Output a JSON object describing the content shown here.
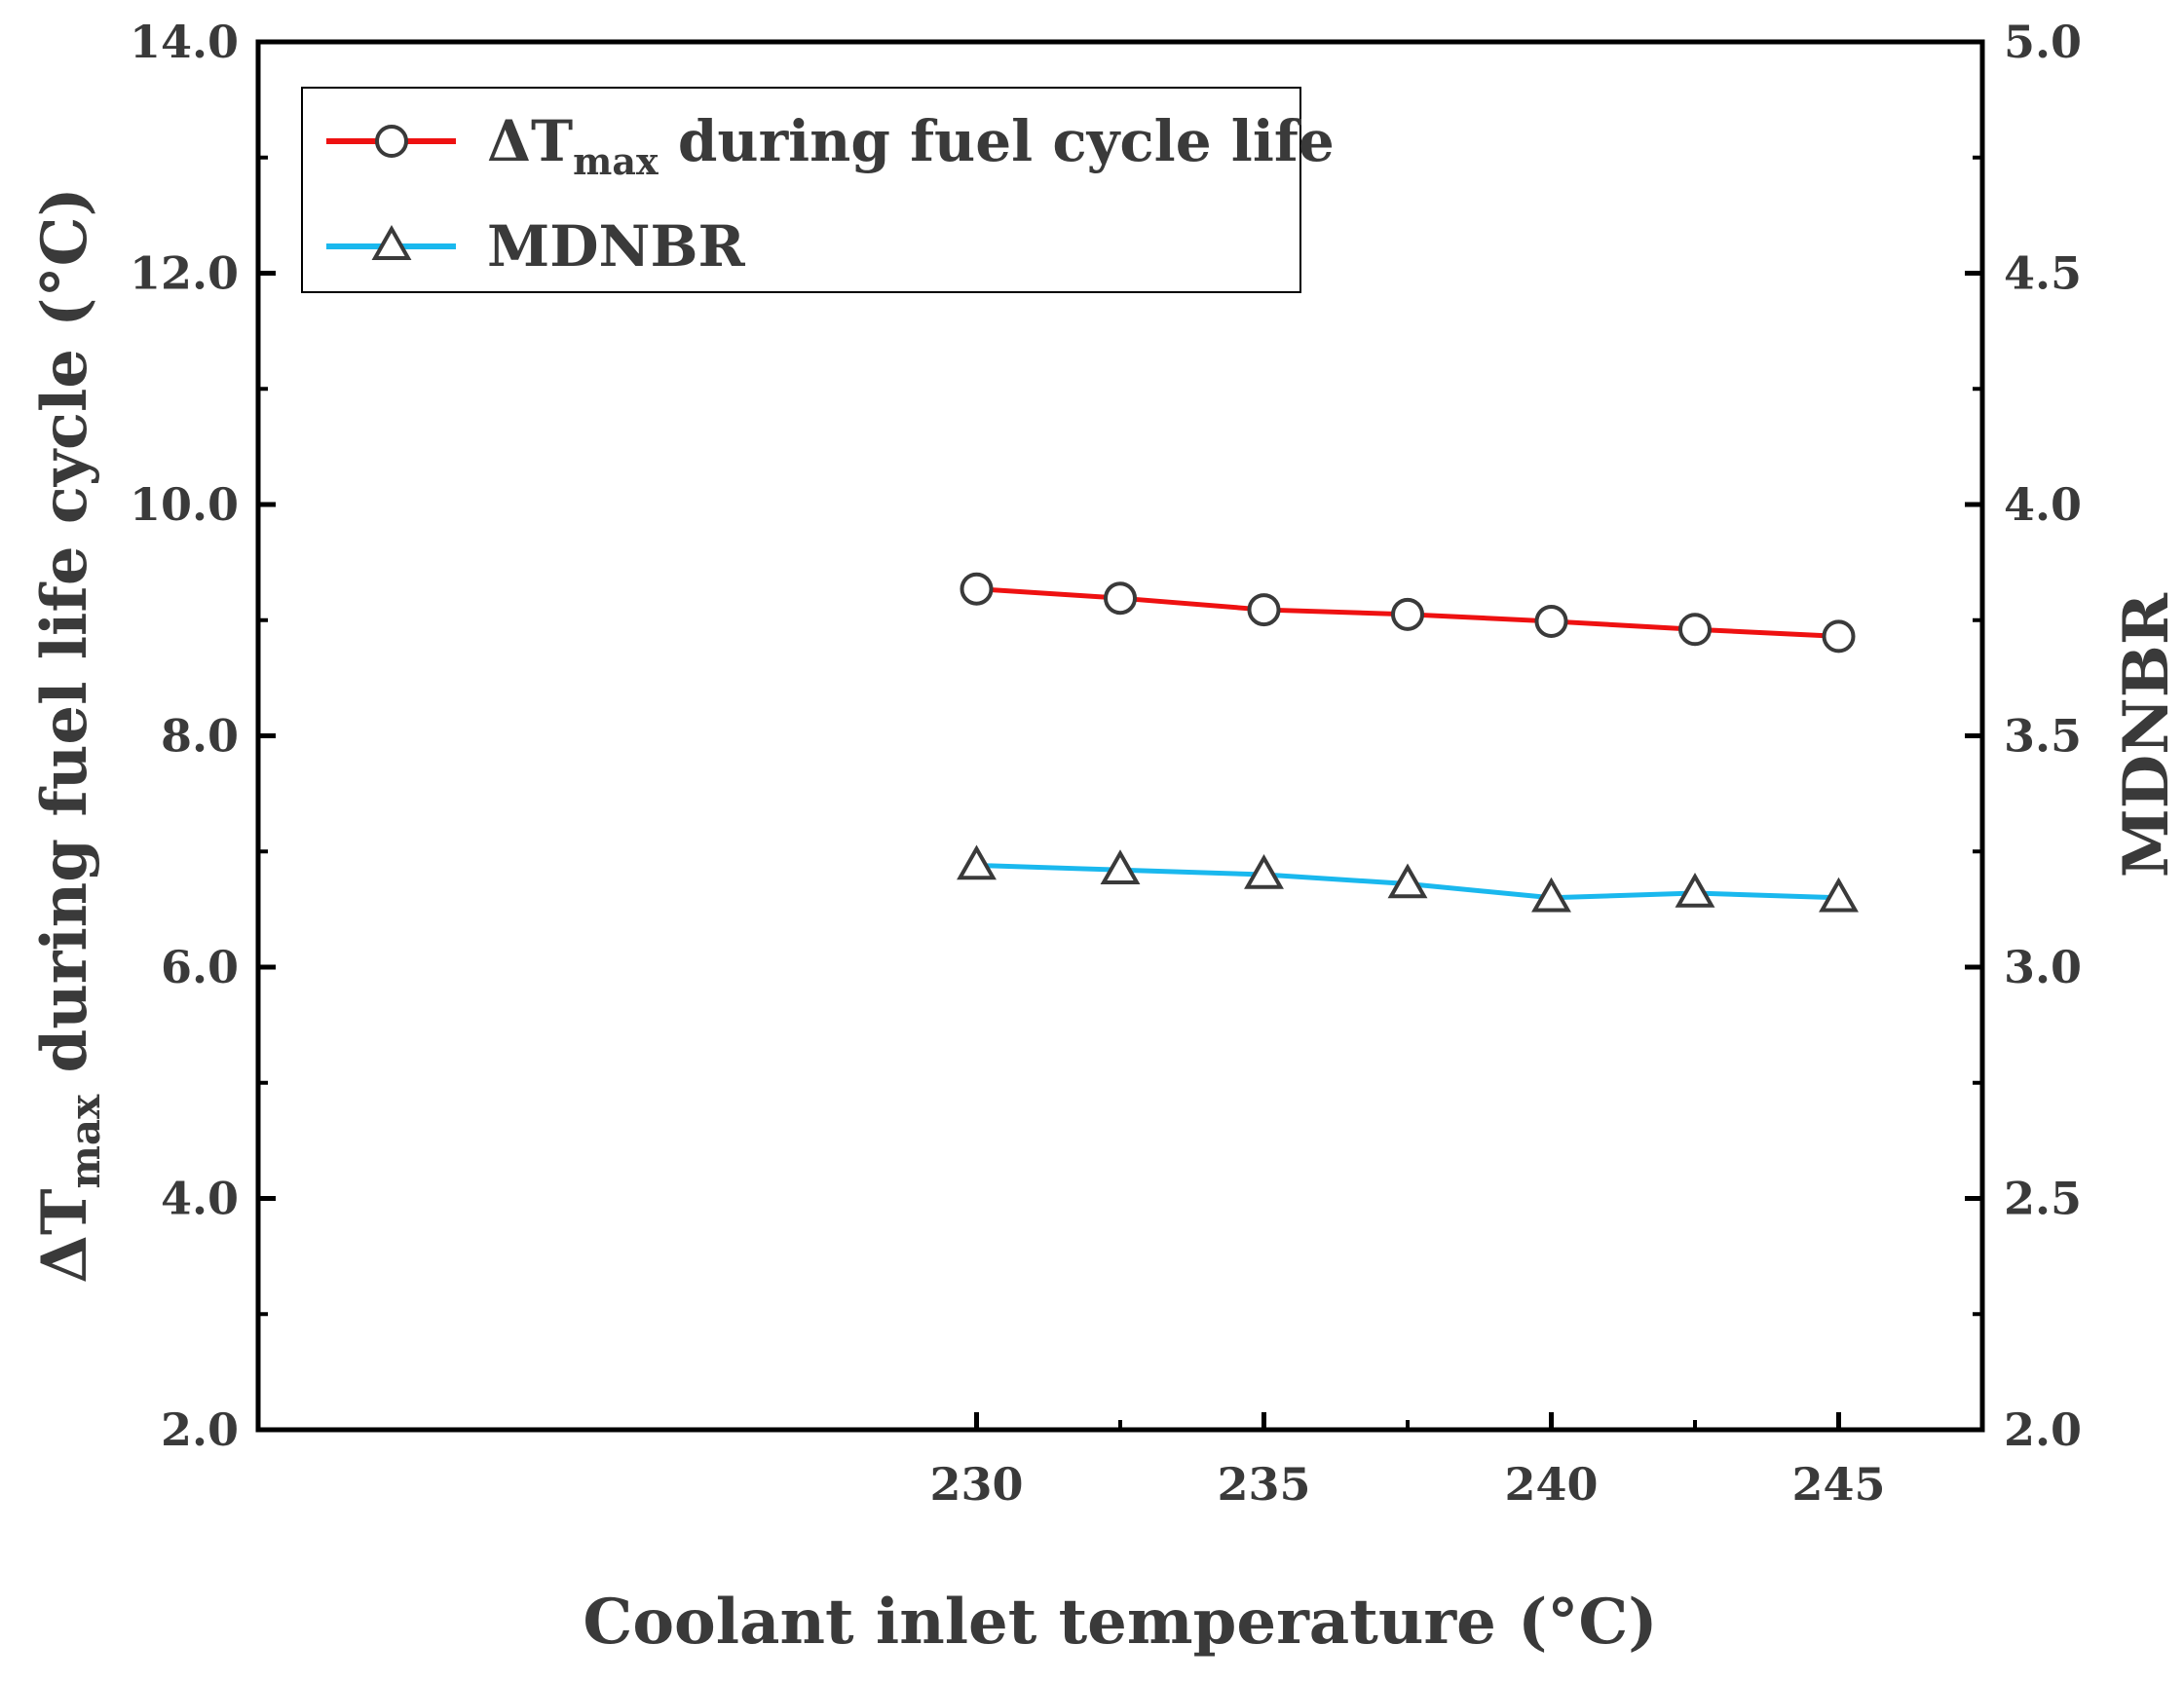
{
  "chart_data": {
    "type": "line",
    "title": "",
    "xlabel": "Coolant inlet temperature (°C)",
    "ylabel": {
      "prefix": "ΔT",
      "subscript": "max",
      "suffix": " during fuel life cycle (°C)"
    },
    "y2label": "MDNBR",
    "x": [
      230,
      232.5,
      235,
      237.5,
      240,
      242.5,
      245
    ],
    "xlim": [
      217.5,
      247.5
    ],
    "xticks": [
      230,
      235,
      240,
      245
    ],
    "xtick_labels": [
      "230",
      "235",
      "240",
      "245"
    ],
    "ylim": [
      2.0,
      14.0
    ],
    "yticks": [
      2,
      4,
      6,
      8,
      10,
      12,
      14
    ],
    "ytick_labels": [
      "2.0",
      "4.0",
      "6.0",
      "8.0",
      "10.0",
      "12.0",
      "14.0"
    ],
    "y2lim": [
      2.0,
      5.0
    ],
    "y2ticks": [
      2.0,
      2.5,
      3.0,
      3.5,
      4.0,
      4.5,
      5.0
    ],
    "y2tick_labels": [
      "2.0",
      "2.5",
      "3.0",
      "3.5",
      "4.0",
      "4.5",
      "5.0"
    ],
    "series": [
      {
        "name": "ΔTmax during fuel cycle life",
        "legend": {
          "prefix": "ΔT",
          "subscript": "max",
          "suffix": " during fuel cycle life"
        },
        "axis": "left",
        "marker": "circle",
        "color": "#ee1111",
        "values": [
          9.27,
          9.19,
          9.09,
          9.05,
          8.99,
          8.92,
          8.86
        ]
      },
      {
        "name": "MDNBR",
        "legend": {
          "prefix": "MDNBR",
          "subscript": "",
          "suffix": ""
        },
        "axis": "right",
        "marker": "triangle",
        "color": "#1ab8ee",
        "values": [
          3.22,
          3.21,
          3.2,
          3.18,
          3.15,
          3.16,
          3.15
        ]
      }
    ],
    "legend_position": "top-left",
    "grid": false
  },
  "colors": {
    "axis": "#000000",
    "text": "#3a3a3a",
    "marker_edge": "#3a3a3a"
  }
}
